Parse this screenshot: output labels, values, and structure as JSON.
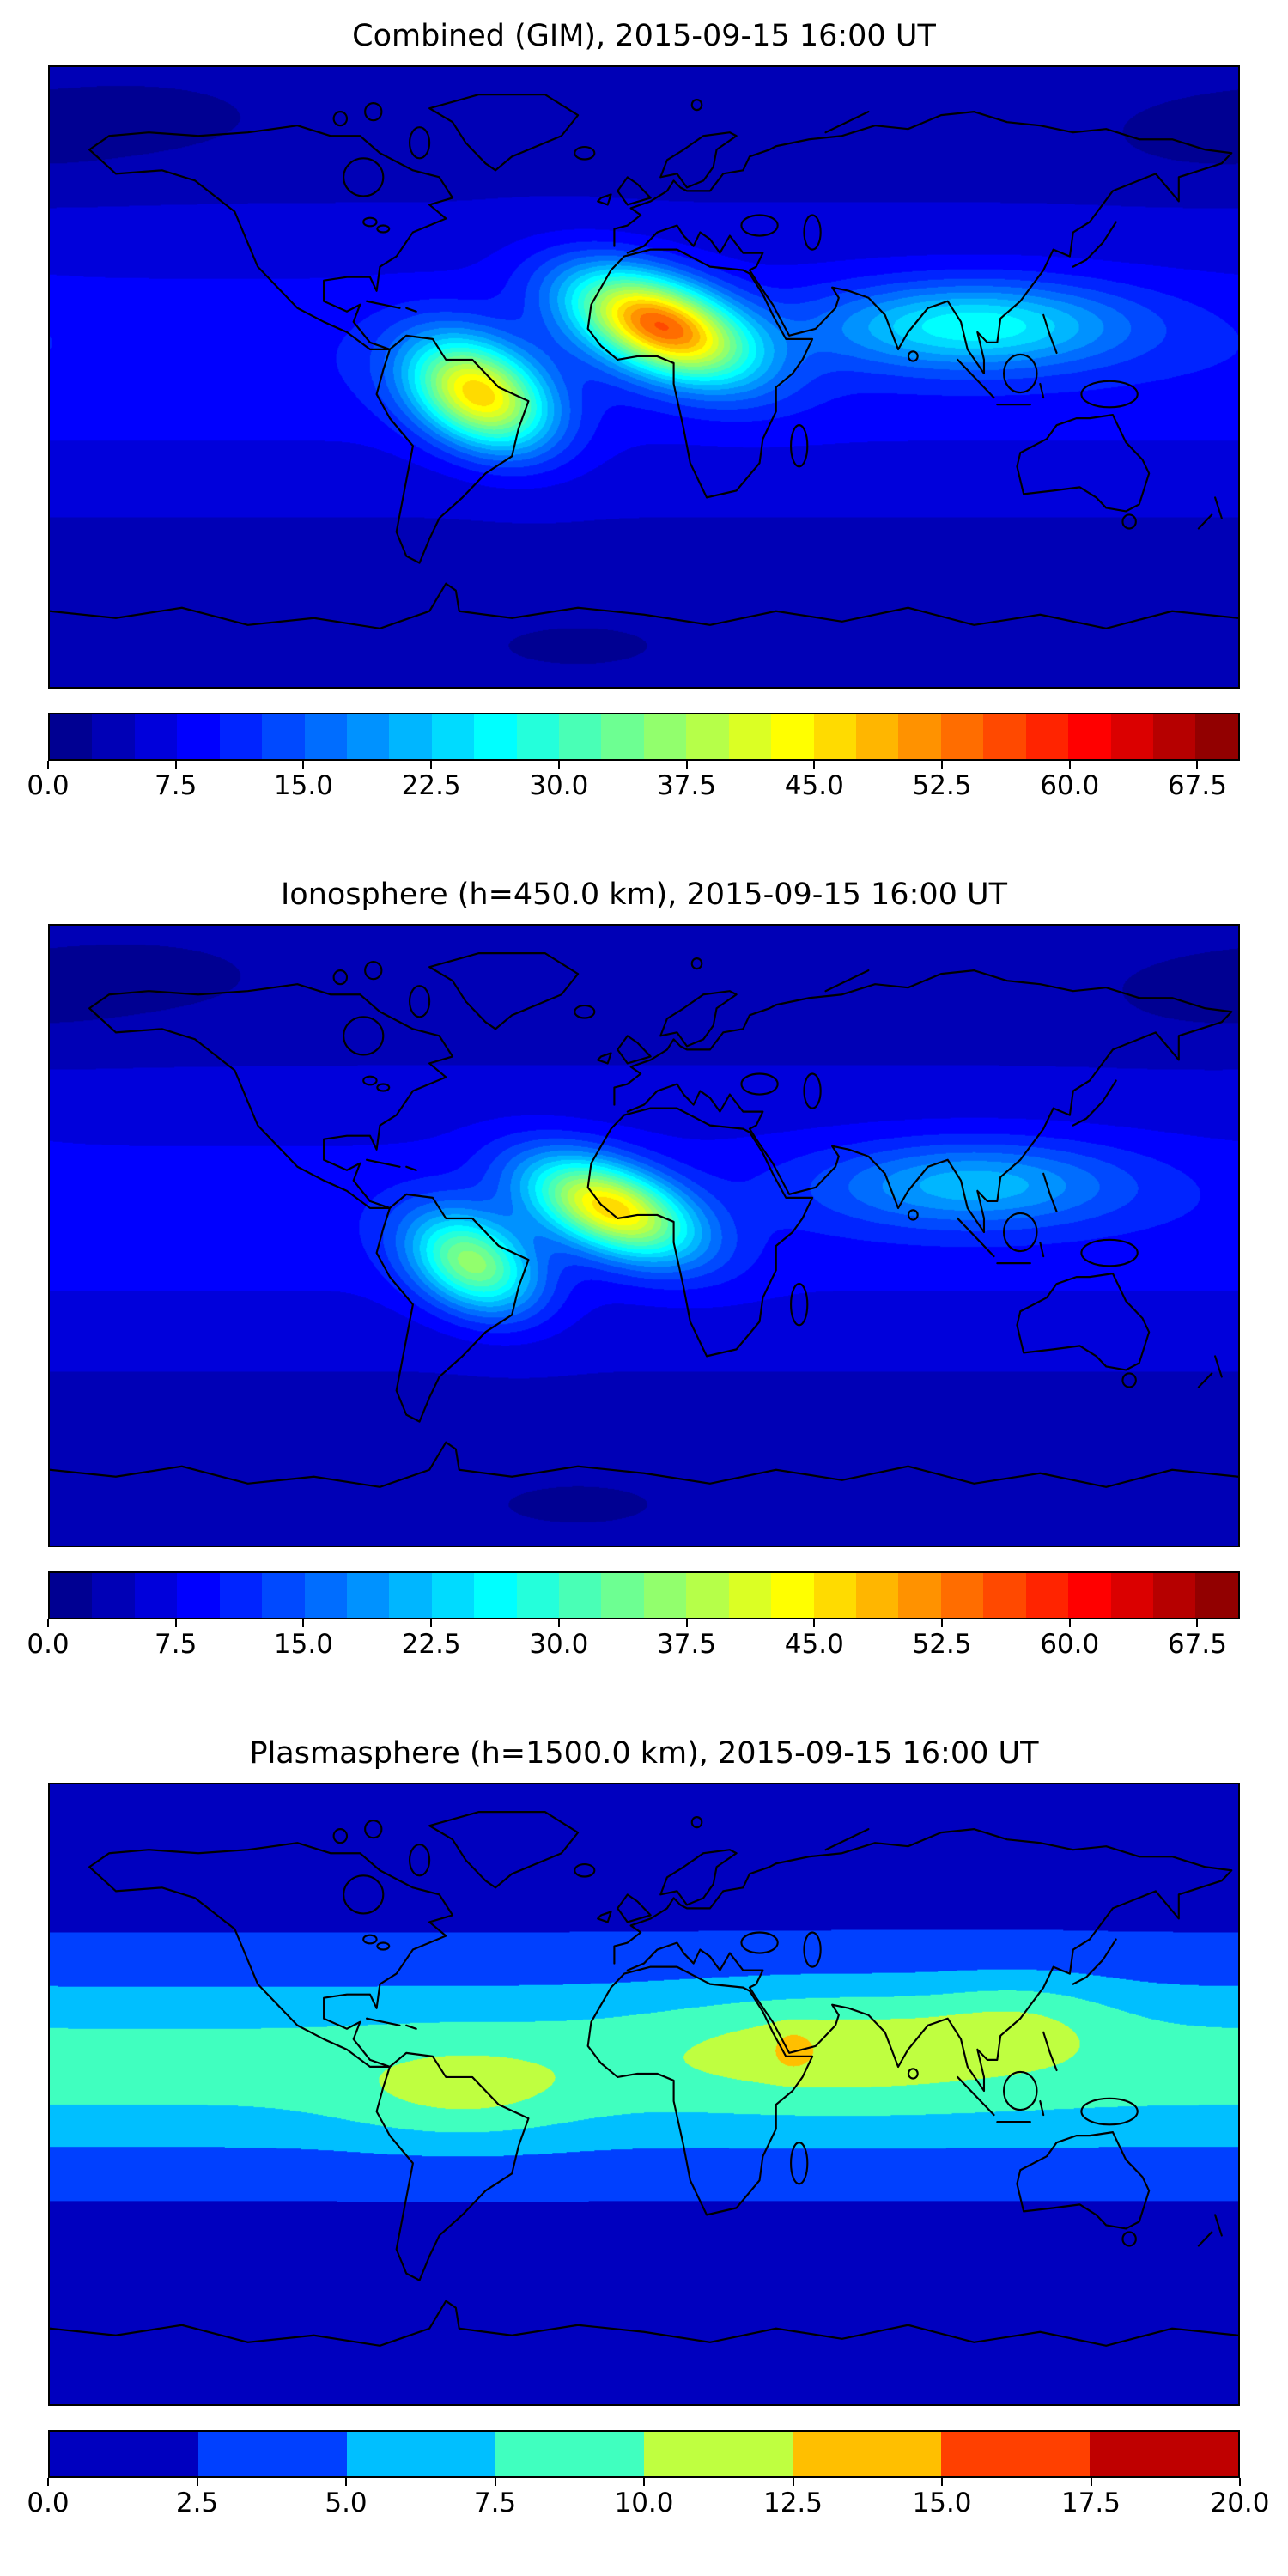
{
  "figure": {
    "background_color": "#ffffff",
    "coastline_color": "#000000",
    "colormap": "jet"
  },
  "chart_data": [
    {
      "type": "filled-contour-map",
      "title": "Combined (GIM), 2015-09-15 16:00 UT",
      "projection": "equirectangular",
      "lon_range": [
        -180,
        180
      ],
      "lat_range": [
        -90,
        90
      ],
      "colormap": "jet",
      "level_min": 0,
      "level_max": 70,
      "level_step": 2.5,
      "colorbar_ticks": [
        "0.0",
        "7.5",
        "15.0",
        "22.5",
        "30.0",
        "37.5",
        "45.0",
        "52.5",
        "60.0",
        "67.5"
      ],
      "colorbar_tick_values": [
        0,
        7.5,
        15,
        22.5,
        30,
        37.5,
        45,
        52.5,
        60,
        67.5
      ],
      "approx_peak_value": 57,
      "field": {
        "base": 4,
        "bands": [
          {
            "amp": 5.5,
            "lat0": 5,
            "sigma_lat": 35
          }
        ],
        "blobs": [
          {
            "amp": 46,
            "lon0": 5,
            "lat0": 15,
            "sx": 28,
            "sy": 13,
            "rot_deg": -20
          },
          {
            "amp": 38,
            "lon0": -50,
            "lat0": -5,
            "sx": 22,
            "sy": 14,
            "rot_deg": -25
          },
          {
            "amp": 18,
            "lon0": 100,
            "lat0": 15,
            "sx": 45,
            "sy": 12,
            "rot_deg": 0
          },
          {
            "amp": -2.5,
            "lon0": -150,
            "lat0": 75,
            "sx": 40,
            "sy": 12,
            "rot_deg": 0
          },
          {
            "amp": -2.5,
            "lon0": 170,
            "lat0": 70,
            "sx": 35,
            "sy": 12,
            "rot_deg": 0
          },
          {
            "amp": -2,
            "lon0": -20,
            "lat0": -78,
            "sx": 40,
            "sy": 10,
            "rot_deg": 0
          }
        ]
      }
    },
    {
      "type": "filled-contour-map",
      "title": "Ionosphere  (h=450.0 km), 2015-09-15 16:00 UT",
      "projection": "equirectangular",
      "lon_range": [
        -180,
        180
      ],
      "lat_range": [
        -90,
        90
      ],
      "colormap": "jet",
      "level_min": 0,
      "level_max": 70,
      "level_step": 2.5,
      "colorbar_ticks": [
        "0.0",
        "7.5",
        "15.0",
        "22.5",
        "30.0",
        "37.5",
        "45.0",
        "52.5",
        "60.0",
        "67.5"
      ],
      "colorbar_tick_values": [
        0,
        7.5,
        15,
        22.5,
        30,
        37.5,
        45,
        52.5,
        60,
        67.5
      ],
      "approx_peak_value": 46,
      "field": {
        "base": 4,
        "bands": [
          {
            "amp": 5,
            "lat0": 5,
            "sigma_lat": 35
          }
        ],
        "blobs": [
          {
            "amp": 38,
            "lon0": -10,
            "lat0": 8,
            "sx": 26,
            "sy": 12,
            "rot_deg": -20
          },
          {
            "amp": 28,
            "lon0": -52,
            "lat0": -8,
            "sx": 20,
            "sy": 13,
            "rot_deg": -25
          },
          {
            "amp": 13,
            "lon0": 100,
            "lat0": 15,
            "sx": 45,
            "sy": 12,
            "rot_deg": 0
          },
          {
            "amp": -2.5,
            "lon0": -150,
            "lat0": 75,
            "sx": 40,
            "sy": 12,
            "rot_deg": 0
          },
          {
            "amp": -2.5,
            "lon0": 170,
            "lat0": 70,
            "sx": 35,
            "sy": 12,
            "rot_deg": 0
          },
          {
            "amp": -2,
            "lon0": -20,
            "lat0": -78,
            "sx": 40,
            "sy": 10,
            "rot_deg": 0
          }
        ]
      }
    },
    {
      "type": "filled-contour-map",
      "title": "Plasmasphere (h=1500.0 km), 2015-09-15 16:00 UT",
      "projection": "equirectangular",
      "lon_range": [
        -180,
        180
      ],
      "lat_range": [
        -90,
        90
      ],
      "colormap": "jet",
      "level_min": 0,
      "level_max": 20,
      "level_step": 2.5,
      "colorbar_ticks": [
        "0.0",
        "2.5",
        "5.0",
        "7.5",
        "10.0",
        "12.5",
        "15.0",
        "17.5",
        "20.0"
      ],
      "colorbar_tick_values": [
        0,
        2.5,
        5,
        7.5,
        10,
        12.5,
        15,
        17.5,
        20
      ],
      "approx_peak_value": 14,
      "field": {
        "base": 1.5,
        "bands": [
          {
            "amp": 7,
            "lat0": 8,
            "sigma_lat": 28
          }
        ],
        "blobs": [
          {
            "amp": 3.5,
            "lon0": 60,
            "lat0": 15,
            "sx": 55,
            "sy": 16,
            "rot_deg": 0
          },
          {
            "amp": 3,
            "lon0": -55,
            "lat0": 0,
            "sx": 35,
            "sy": 14,
            "rot_deg": 0
          },
          {
            "amp": 2.5,
            "lon0": 115,
            "lat0": 22,
            "sx": 28,
            "sy": 13,
            "rot_deg": 0
          },
          {
            "amp": 2.5,
            "lon0": 45,
            "lat0": 13,
            "sx": 6,
            "sy": 6,
            "rot_deg": 0
          }
        ]
      }
    }
  ]
}
